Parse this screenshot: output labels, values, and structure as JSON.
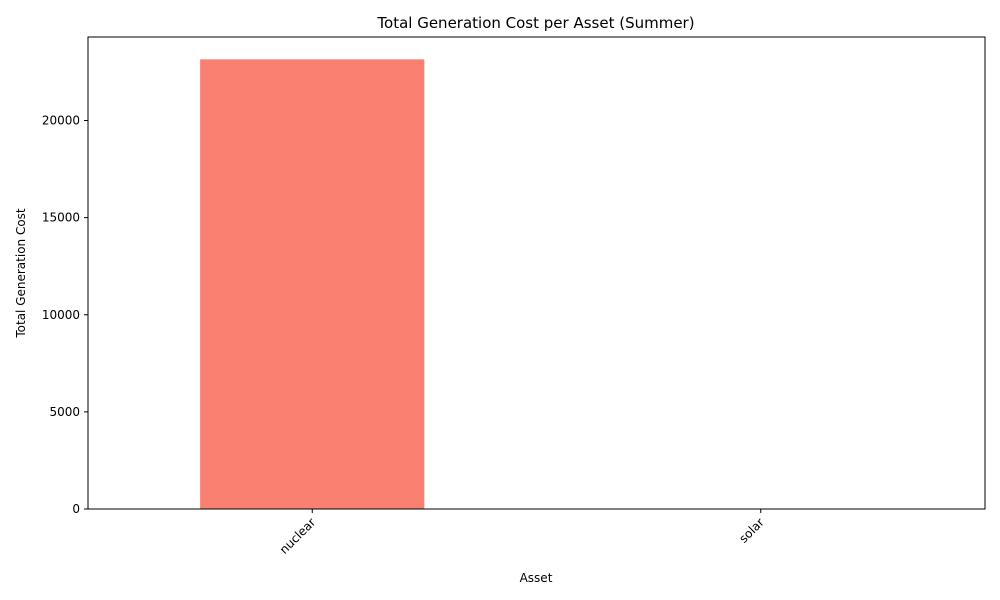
{
  "chart_data": {
    "type": "bar",
    "title": "Total Generation Cost per Asset (Summer)",
    "xlabel": "Asset",
    "ylabel": "Total Generation Cost",
    "categories": [
      "nuclear",
      "solar"
    ],
    "values": [
      23150,
      0
    ],
    "ylim": [
      0,
      24300
    ],
    "yticks": [
      0,
      5000,
      10000,
      15000,
      20000
    ],
    "ytick_labels": [
      "0",
      "5000",
      "10000",
      "15000",
      "20000"
    ],
    "bar_color": "#fa8072",
    "grid": false,
    "legend": "none"
  }
}
